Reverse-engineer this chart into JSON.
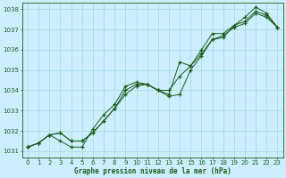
{
  "title": "Graphe pression niveau de la mer (hPa)",
  "bg_color": "#cceeff",
  "grid_color": "#aadddd",
  "line_color": "#1a5c1a",
  "marker_color": "#1a5c1a",
  "xlim": [
    -0.5,
    23.5
  ],
  "ylim": [
    1030.7,
    1038.3
  ],
  "yticks": [
    1031,
    1032,
    1033,
    1034,
    1035,
    1036,
    1037,
    1038
  ],
  "xticks": [
    0,
    1,
    2,
    3,
    4,
    5,
    6,
    7,
    8,
    9,
    10,
    11,
    12,
    13,
    14,
    15,
    16,
    17,
    18,
    19,
    20,
    21,
    22,
    23
  ],
  "series": [
    [
      1031.2,
      1031.4,
      1031.8,
      1031.9,
      1031.5,
      1031.5,
      1031.9,
      1032.5,
      1033.1,
      1033.8,
      1034.2,
      1034.3,
      1034.0,
      1034.0,
      1034.7,
      1035.2,
      1035.8,
      1036.5,
      1036.7,
      1037.1,
      1037.3,
      1037.8,
      1037.6,
      1037.1
    ],
    [
      1031.2,
      1031.4,
      1031.8,
      1031.9,
      1031.5,
      1031.5,
      1031.9,
      1032.5,
      1033.1,
      1034.0,
      1034.3,
      1034.3,
      1034.0,
      1033.7,
      1033.8,
      1035.0,
      1035.7,
      1036.5,
      1036.6,
      1037.2,
      1037.4,
      1037.9,
      1037.7,
      1037.1
    ],
    [
      1031.2,
      1031.4,
      1031.8,
      1031.5,
      1031.2,
      1031.2,
      1032.1,
      1032.8,
      1033.3,
      1034.2,
      1034.4,
      1034.3,
      1034.0,
      1033.8,
      1035.4,
      1035.2,
      1036.0,
      1036.8,
      1036.8,
      1037.2,
      1037.6,
      1038.1,
      1037.8,
      1037.1
    ]
  ]
}
